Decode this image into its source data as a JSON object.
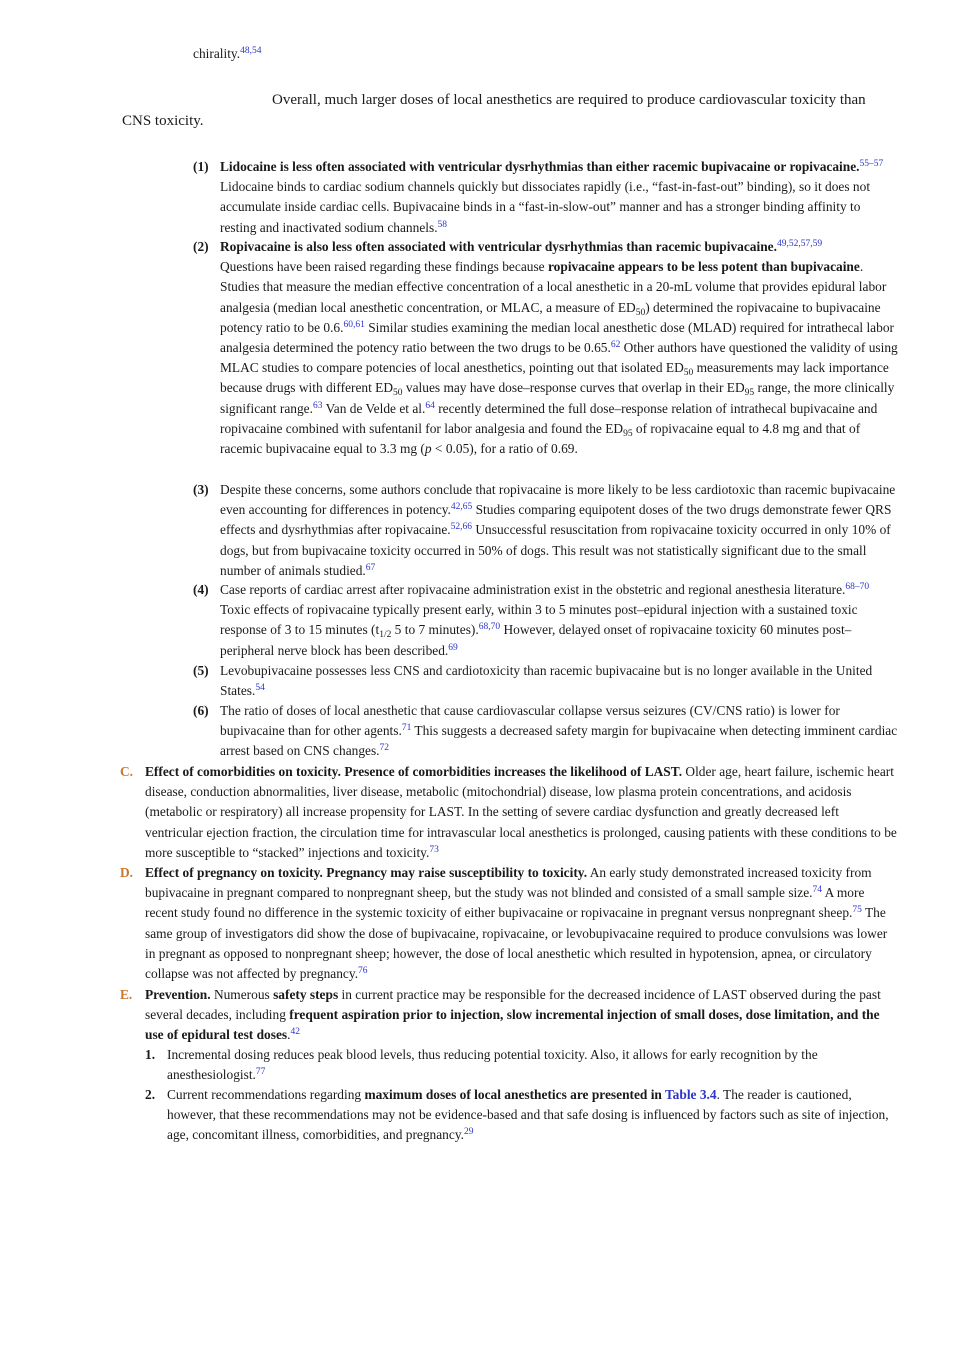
{
  "chirality": {
    "text": "chirality.",
    "refs": "48,54"
  },
  "overall": {
    "text": "Overall, much larger doses of local anesthetics are required to produce cardiovascular toxicity than CNS toxicity."
  },
  "list_numbered": {
    "i1": {
      "num": "(1)",
      "bold": "Lidocaine is less often associated with ventricular dysrhythmias than either racemic bupivacaine or ropivacaine.",
      "ref1": "55–57",
      "text": " Lidocaine binds to cardiac sodium channels quickly but dissociates rapidly (i.e., “fast-in-fast-out” binding), so it does not accumulate inside cardiac cells. Bupivacaine binds in a “fast-in-slow-out” manner and has a stronger binding affinity to resting and inactivated sodium channels.",
      "ref2": "58"
    },
    "i2": {
      "num": "(2)",
      "bold": "Ropivacaine is also less often associated with ventricular dysrhythmias than racemic bupivacaine.",
      "ref1": "49,52,57,59",
      "t1": "Questions have been raised regarding these findings because ",
      "b2": "ropivacaine appears to be less potent than bupivacaine",
      "t2": ". Studies that measure the median effective concentration of a local anesthetic in a 20-mL volume that provides epidural labor analgesia (median local anesthetic concentration, or MLAC, a measure of ED",
      "s50a": "50",
      "t3": ") determined the ropivacaine to bupivacaine potency ratio to be 0.6.",
      "ref2": "60,61",
      "t4": " Similar studies examining the median local anesthetic dose (MLAD) required for intrathecal labor analgesia determined the potency ratio between the two drugs to be 0.65.",
      "ref3": "62",
      "t5": " Other authors have questioned the validity of using MLAC studies to compare potencies of local anesthetics, pointing out that isolated ED",
      "s50b": "50",
      "t6": " measurements may lack importance because drugs with different ED",
      "s50c": "50",
      "t7": " values may have dose–response curves that overlap in their ED",
      "s95a": "95",
      "t8": " range, the more clinically significant range.",
      "ref4": "63",
      "t9": " Van de Velde et al.",
      "ref5": "64",
      "t10": " recently determined the full dose–response relation of intrathecal bupivacaine and ropivacaine combined with sufentanil for labor analgesia and found the ED",
      "s95b": "95",
      "t11": " of ropivacaine equal to 4.8 mg and that of racemic bupivacaine equal to 3.3 mg (",
      "p": "p",
      "t12": " < 0.05), for a ratio of 0.69."
    },
    "i3": {
      "num": "(3)",
      "t1": "Despite these concerns, some authors conclude that ropivacaine is more likely to be less cardiotoxic than racemic bupivacaine even accounting for differences in potency.",
      "ref1": "42,65",
      "t2": " Studies comparing equipotent doses of the two drugs demonstrate fewer QRS effects and dysrhythmias after ropivacaine.",
      "ref2": "52,66",
      "t3": " Unsuccessful resuscitation from ropivacaine toxicity occurred in only 10% of dogs, but from bupivacaine toxicity occurred in 50% of dogs. This result was not statistically significant due to the small number of animals studied.",
      "ref3": "67"
    },
    "i4": {
      "num": "(4)",
      "t1": "Case reports of cardiac arrest after ropivacaine administration exist in the obstetric and regional anesthesia literature.",
      "ref1": "68–70",
      "t2": " Toxic effects of ropivacaine typically present early, within 3 to 5 minutes post–epidural injection with a sustained toxic response of 3 to 15 minutes (t",
      "sub": "1/2",
      "t3": " 5 to 7 minutes).",
      "ref2": "68,70",
      "t4": " However, delayed onset of ropivacaine toxicity 60 minutes post–peripheral nerve block has been described.",
      "ref3": "69"
    },
    "i5": {
      "num": "(5)",
      "t1": "Levobupivacaine possesses less CNS and cardiotoxicity than racemic bupivacaine but is no longer available in the United States.",
      "ref1": "54"
    },
    "i6": {
      "num": "(6)",
      "t1": "The ratio of doses of local anesthetic that cause cardiovascular collapse versus seizures (CV/CNS ratio) is lower for bupivacaine than for other agents.",
      "ref1": "71",
      "t2": " This suggests a decreased safety margin for bupivacaine when detecting imminent cardiac arrest based on CNS changes.",
      "ref2": "72"
    }
  },
  "sections": {
    "c": {
      "letter": "C.",
      "bold": "Effect of comorbidities on toxicity. Presence of comorbidities increases the likelihood of LAST.",
      "t1": " Older age, heart failure, ischemic heart disease, conduction abnormalities, liver disease, metabolic (mitochondrial) disease, low plasma protein concentrations, and acidosis (metabolic or respiratory) all increase propensity for LAST. In the setting of severe cardiac dysfunction and greatly decreased left ventricular ejection fraction, the circulation time for intravascular local anesthetics is prolonged, causing patients with these conditions to be more susceptible to “stacked” injections and toxicity.",
      "ref1": "73"
    },
    "d": {
      "letter": "D.",
      "bold": "Effect of pregnancy on toxicity. Pregnancy may raise susceptibility to toxicity.",
      "t1": " An early study demonstrated increased toxicity from bupivacaine in pregnant compared to nonpregnant sheep, but the study was not blinded and consisted of a small sample size.",
      "ref1": "74",
      "t2": " A more recent study found no difference in the systemic toxicity of either bupivacaine or ropivacaine in pregnant versus nonpregnant sheep.",
      "ref2": "75",
      "t3": " The same group of investigators did show the dose of bupivacaine, ropivacaine, or levobupivacaine required to produce convulsions was lower in pregnant as opposed to nonpregnant sheep; however, the dose of local anesthetic which resulted in hypotension, apnea, or circulatory collapse was not affected by pregnancy.",
      "ref3": "76"
    },
    "e": {
      "letter": "E.",
      "bold": "Prevention.",
      "t1": " Numerous ",
      "b2": "safety steps",
      "t2": " in current practice may be responsible for the decreased incidence of LAST observed during the past several decades, including ",
      "b3": "frequent aspiration prior to injection, slow incremental injection of small doses, dose limitation, and the use of epidural test doses",
      "t3": ".",
      "ref1": "42"
    }
  },
  "prevention_list": {
    "i1": {
      "num": "1.",
      "t1": "Incremental dosing reduces peak blood levels, thus reducing potential toxicity. Also, it allows for early recognition by the anesthesiologist.",
      "ref1": "77"
    },
    "i2": {
      "num": "2.",
      "t1": "Current recommendations regarding ",
      "b1": "maximum doses of local anesthetics are presented in ",
      "link": "Table 3.4",
      "t2": ". The reader is cautioned, however, that these recommendations may not be evidence-based and that safe dosing is influenced by factors such as site of injection, age, concomitant illness, comorbidities, and pregnancy.",
      "ref2": "29"
    }
  }
}
